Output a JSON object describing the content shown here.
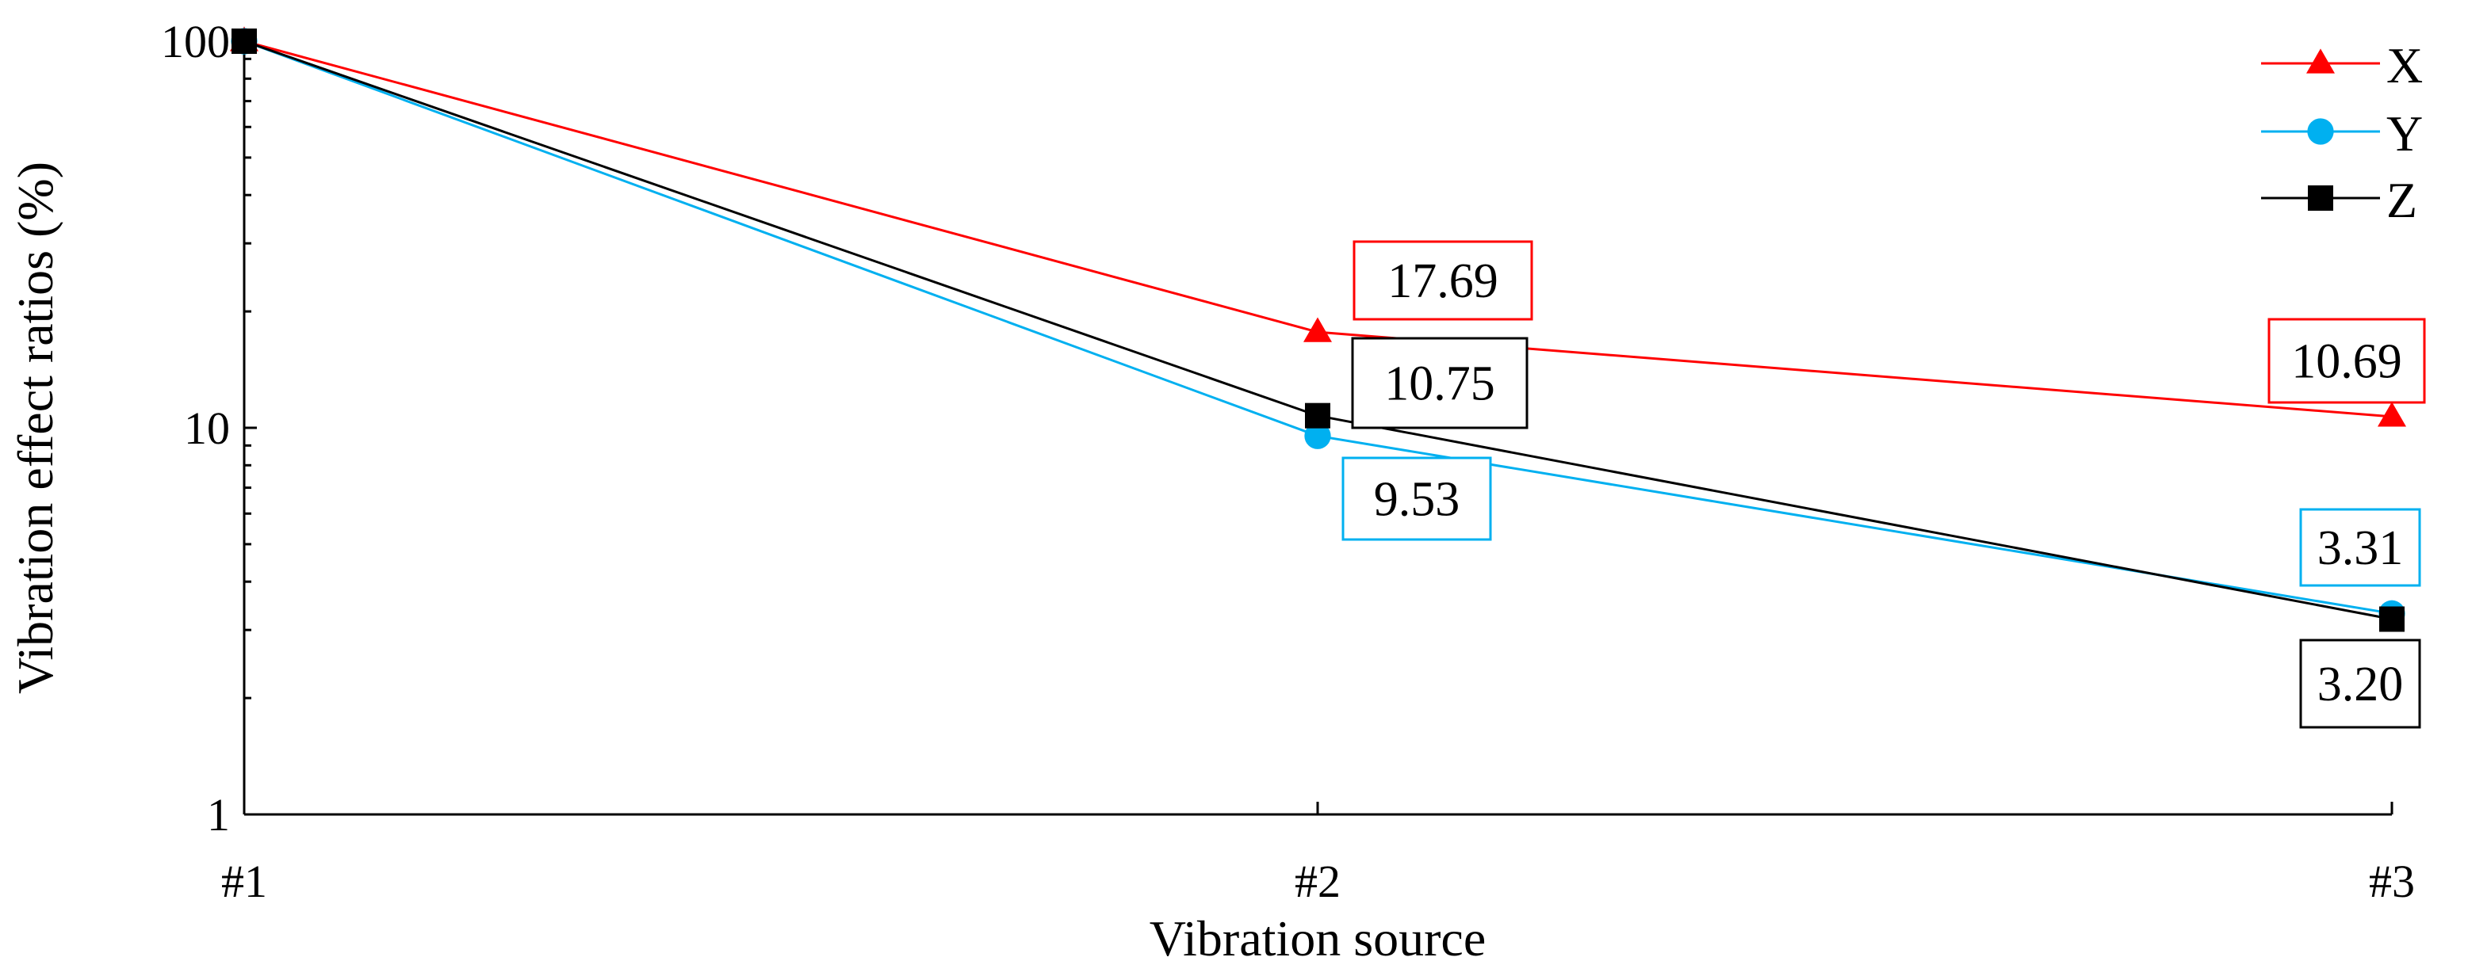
{
  "chart_data": {
    "type": "line",
    "x_scale": "categorical",
    "y_scale": "log",
    "categories": [
      "#1",
      "#2",
      "#3"
    ],
    "xlabel": "Vibration source",
    "ylabel": "Vibration effect ratios (%)",
    "ylim": [
      1,
      100
    ],
    "yticks": [
      1,
      10,
      100
    ],
    "ytick_labels": [
      "1",
      "10",
      "100"
    ],
    "grid": false,
    "legend_position": "top-right",
    "series": [
      {
        "name": "X",
        "color": "#ff0000",
        "marker": "triangle",
        "values": [
          100,
          17.69,
          10.69
        ],
        "data_labels": [
          null,
          "17.69",
          "10.69"
        ]
      },
      {
        "name": "Y",
        "color": "#00b0f0",
        "marker": "circle",
        "values": [
          100,
          9.53,
          3.31
        ],
        "data_labels": [
          null,
          "9.53",
          "3.31"
        ]
      },
      {
        "name": "Z",
        "color": "#000000",
        "marker": "square",
        "values": [
          100,
          10.75,
          3.2
        ],
        "data_labels": [
          null,
          "10.75",
          "3.20"
        ]
      }
    ]
  }
}
